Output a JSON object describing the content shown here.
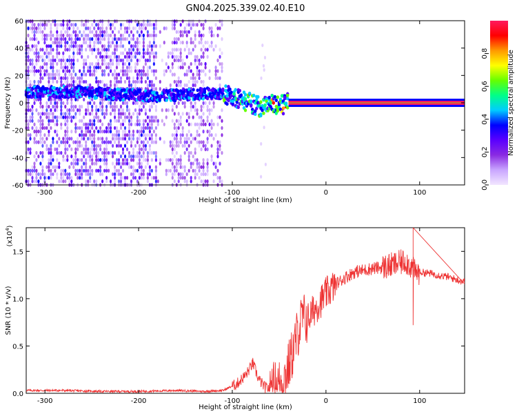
{
  "title": "GN04.2025.339.02.40.E10",
  "chart_data": [
    {
      "type": "heatmap",
      "xlabel": "Height of straight line (km)",
      "ylabel": "Frequency (Hz)",
      "xlim": [
        -320,
        148
      ],
      "ylim": [
        -60,
        60
      ],
      "x_ticks": [
        -300,
        -200,
        -100,
        0,
        100
      ],
      "x_tick_labels": [
        "-300",
        "-200",
        "-100",
        "0",
        "100"
      ],
      "y_ticks": [
        -60,
        -40,
        -20,
        0,
        20,
        40,
        60
      ],
      "y_tick_labels": [
        "-60",
        "-40",
        "-20",
        "0",
        "20",
        "40",
        "60"
      ],
      "colorbar": {
        "label": "Normalized spectral amplitude",
        "range": [
          0,
          1
        ],
        "ticks": [
          0.0,
          0.2,
          0.4,
          0.6,
          0.8
        ],
        "tick_labels": [
          "0.0",
          "0.2",
          "0.4",
          "0.6",
          "0.8"
        ],
        "colors": [
          "#f2e6ff",
          "#c9a6ff",
          "#8a2be2",
          "#5a00ff",
          "#0000ff",
          "#00ccff",
          "#00ff88",
          "#66ff00",
          "#ffff00",
          "#ff9900",
          "#ff0000",
          "#ff1a5e"
        ]
      },
      "regions": [
        {
          "name": "noise",
          "x_range": [
            -320,
            -110
          ],
          "y_range": [
            -60,
            60
          ]
        },
        {
          "name": "dense-noise",
          "x_range": [
            -320,
            -180
          ],
          "y_range": [
            -60,
            60
          ]
        },
        {
          "name": "noise-gap",
          "x_range": [
            -180,
            -165
          ],
          "y_range": [
            -60,
            60
          ]
        },
        {
          "name": "transition",
          "x_range": [
            -110,
            -40
          ],
          "y_range": [
            -12,
            12
          ]
        },
        {
          "name": "plasma-line",
          "x_range": [
            -40,
            148
          ],
          "y_center": 0,
          "y_halfwidth": 1.5
        }
      ],
      "ridge": {
        "x": [
          -320,
          -260,
          -220,
          -180,
          -150,
          -120,
          -100,
          -80,
          -70,
          -60,
          -50,
          -40,
          -30,
          -20,
          -10,
          0,
          50,
          100,
          148
        ],
        "y": [
          8,
          8,
          6,
          5,
          6,
          7,
          5,
          0,
          -3,
          -1,
          -2,
          0,
          2,
          1,
          0,
          0,
          0,
          0,
          0
        ]
      }
    },
    {
      "type": "line",
      "xlabel": "Height of straight line (km)",
      "ylabel": "SNR (10 * v/v)",
      "y_multiplier": "(x10",
      "y_multiplier_exp": "4",
      "y_multiplier_close": ")",
      "xlim": [
        -320,
        148
      ],
      "ylim": [
        0,
        1.75
      ],
      "x_ticks": [
        -300,
        -200,
        -100,
        0,
        100
      ],
      "x_tick_labels": [
        "-300",
        "-200",
        "-100",
        "0",
        "100"
      ],
      "y_ticks": [
        0.0,
        0.5,
        1.0,
        1.5
      ],
      "y_tick_labels": [
        "0.0",
        "0.5",
        "1.0",
        "1.5"
      ],
      "line_color": "#ee3333",
      "series": [
        {
          "name": "SNR",
          "x": [
            -320,
            -280,
            -240,
            -200,
            -160,
            -130,
            -110,
            -95,
            -85,
            -78,
            -72,
            -65,
            -58,
            -50,
            -45,
            -40,
            -35,
            -30,
            -25,
            -20,
            -15,
            -10,
            -5,
            0,
            10,
            20,
            30,
            40,
            50,
            60,
            70,
            80,
            85,
            90,
            95,
            100,
            110,
            120,
            130,
            140,
            148
          ],
          "y": [
            0.03,
            0.03,
            0.02,
            0.02,
            0.03,
            0.02,
            0.03,
            0.1,
            0.2,
            0.32,
            0.15,
            0.06,
            0.05,
            0.1,
            0.15,
            0.28,
            0.45,
            0.65,
            0.8,
            0.78,
            0.85,
            0.92,
            0.98,
            1.05,
            1.15,
            1.22,
            1.28,
            1.3,
            1.32,
            1.33,
            1.35,
            1.38,
            1.4,
            1.35,
            1.28,
            1.28,
            1.27,
            1.25,
            1.23,
            1.2,
            1.18
          ]
        }
      ],
      "spikes": [
        {
          "x": 93,
          "y": 1.75
        },
        {
          "x": 93,
          "y": 0.72
        }
      ]
    }
  ]
}
